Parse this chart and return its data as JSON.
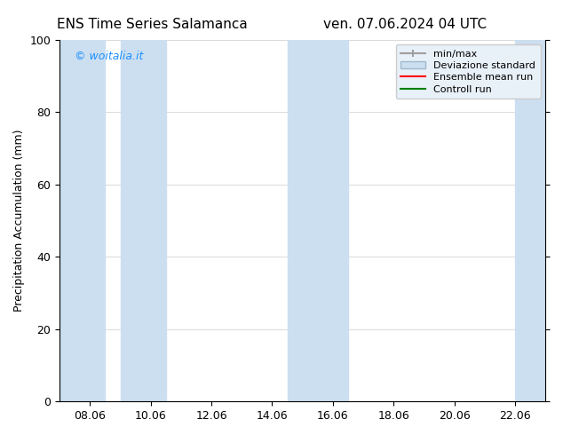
{
  "title_left": "ENS Time Series Salamanca",
  "title_right": "ven. 07.06.2024 04 UTC",
  "ylabel": "Precipitation Accumulation (mm)",
  "ylim": [
    0,
    100
  ],
  "yticks": [
    0,
    20,
    40,
    60,
    80,
    100
  ],
  "x_tick_labels": [
    "08.06",
    "10.06",
    "12.06",
    "14.06",
    "16.06",
    "18.06",
    "20.06",
    "22.06"
  ],
  "x_tick_positions": [
    8,
    10,
    12,
    14,
    16,
    18,
    20,
    22
  ],
  "xlim": [
    7.0,
    23.0
  ],
  "background_color": "#ffffff",
  "plot_bg_color": "#ffffff",
  "watermark_text": "© woitalia.it",
  "watermark_color": "#1E90FF",
  "shaded_bands": [
    {
      "x_start": 7.0,
      "x_end": 8.5,
      "color": "#ccdff0",
      "alpha": 1.0
    },
    {
      "x_start": 9.0,
      "x_end": 10.5,
      "color": "#ccdff0",
      "alpha": 1.0
    },
    {
      "x_start": 14.5,
      "x_end": 16.5,
      "color": "#ccdff0",
      "alpha": 1.0
    },
    {
      "x_start": 22.0,
      "x_end": 23.0,
      "color": "#ccdff0",
      "alpha": 1.0
    }
  ],
  "minmax_color": "#a0a0a0",
  "std_color": "#c8d8e8",
  "mean_color": "#ff0000",
  "control_color": "#008000",
  "legend_labels": [
    "min/max",
    "Deviazione standard",
    "Ensemble mean run",
    "Controll run"
  ],
  "font_size": 9,
  "title_font_size": 11
}
